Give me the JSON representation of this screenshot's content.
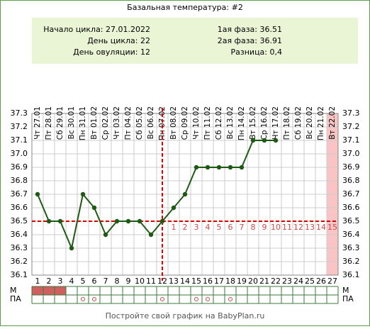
{
  "chart_data": {
    "type": "line",
    "title": "Базальная температура: #2",
    "info_left": [
      "Начало цикла: 27.01.2022",
      "День цикла: 22",
      "День овуляции: 12"
    ],
    "info_right": [
      "1ая фаза: 36.51",
      "2ая фаза: 36.91",
      "Разница: 0,4"
    ],
    "categories": [
      1,
      2,
      3,
      4,
      5,
      6,
      7,
      8,
      9,
      10,
      11,
      12,
      13,
      14,
      15,
      16,
      17,
      18,
      19,
      20,
      21,
      22,
      23,
      24,
      25,
      26,
      27
    ],
    "dates": [
      "Чт 27.01",
      "Пт 28.01",
      "Сб 29.01",
      "Вс 30.01",
      "Пн 31.01",
      "Вт 01.02",
      "Ср 02.02",
      "Чт 03.02",
      "Пт 04.02",
      "Сб 05.02",
      "Вс 06.02",
      "Пн 07.02",
      "Вт 08.02",
      "Ср 09.02",
      "Чт 10.02",
      "Пт 11.02",
      "Сб 12.02",
      "Вс 13.02",
      "Пн 14.02",
      "Вт 15.02",
      "Ср 16.02",
      "Чт 17.02",
      "Пт 18.02",
      "Сб 19.02",
      "Вс 20.02",
      "Пн 21.02",
      "Вт 22.02"
    ],
    "series": [
      {
        "color": "#1f5a14",
        "values": [
          36.7,
          36.5,
          36.5,
          36.3,
          36.7,
          36.6,
          36.4,
          36.5,
          36.5,
          36.5,
          36.4,
          36.5,
          36.6,
          36.7,
          36.9,
          36.9,
          36.9,
          36.9,
          36.9,
          37.1,
          37.1,
          37.1,
          null,
          null,
          null,
          null,
          null
        ]
      }
    ],
    "ylim": [
      36.1,
      37.3
    ],
    "yticks": [
      36.1,
      36.2,
      36.3,
      36.4,
      36.5,
      36.6,
      36.7,
      36.8,
      36.9,
      {
        "value": 37,
        "label": "37.0"
      },
      37.1,
      37.2,
      37.3
    ],
    "grid": true,
    "coverline": 36.5,
    "ovulation_day": 12,
    "phase2_day_labels": [
      1,
      2,
      3,
      4,
      5,
      6,
      7,
      8,
      9,
      10,
      11,
      12,
      13,
      14,
      15
    ],
    "highlight_day": 27,
    "row_labels": [
      "М",
      "ПА"
    ],
    "menstruation_days": [
      1,
      2,
      3
    ],
    "intercourse_days": [
      5,
      6,
      12,
      15,
      16,
      18
    ],
    "footer": "Постройте свой график на BabyPlan.ru"
  }
}
